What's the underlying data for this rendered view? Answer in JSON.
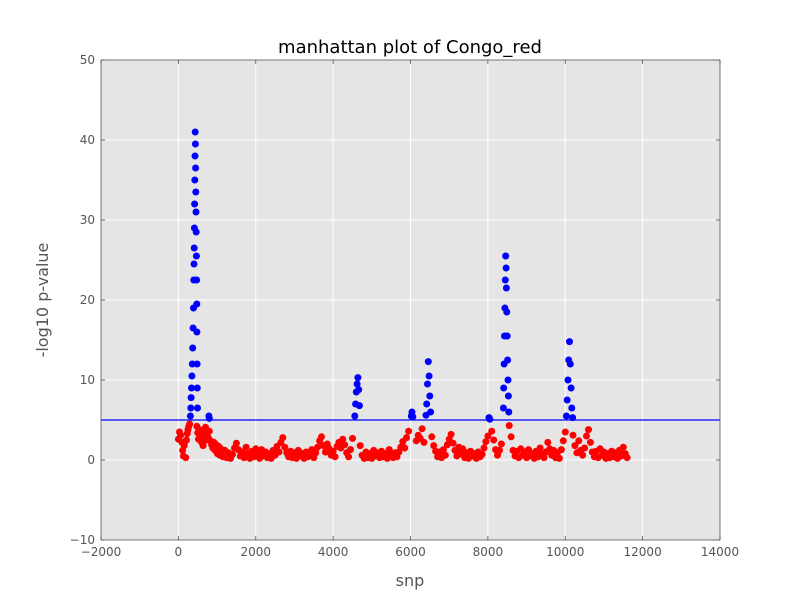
{
  "chart_data": {
    "type": "scatter",
    "title": "manhattan plot of Congo_red",
    "xlabel": "snp",
    "ylabel": "-log10 p-value",
    "xlim": [
      -2000,
      14000
    ],
    "ylim": [
      -10,
      50
    ],
    "xticks": [
      -2000,
      0,
      2000,
      4000,
      6000,
      8000,
      10000,
      12000,
      14000
    ],
    "yticks": [
      -10,
      0,
      10,
      20,
      30,
      40,
      50
    ],
    "grid": true,
    "threshold": {
      "y": 5,
      "color": "#0000ff"
    },
    "series": [
      {
        "color": "#ff0000",
        "points": [
          [
            0,
            2.6
          ],
          [
            30,
            3.5
          ],
          [
            60,
            3.1
          ],
          [
            90,
            2.2
          ],
          [
            110,
            1.2
          ],
          [
            130,
            0.5
          ],
          [
            150,
            1.8
          ],
          [
            170,
            2.3
          ],
          [
            190,
            0.3
          ],
          [
            210,
            2.5
          ],
          [
            230,
            3.3
          ],
          [
            250,
            3.8
          ],
          [
            270,
            4.2
          ],
          [
            290,
            4.5
          ],
          [
            480,
            4.2
          ],
          [
            500,
            3.4
          ],
          [
            520,
            2.6
          ],
          [
            540,
            3.8
          ],
          [
            560,
            2.9
          ],
          [
            580,
            3.6
          ],
          [
            600,
            2.2
          ],
          [
            620,
            3.1
          ],
          [
            640,
            1.8
          ],
          [
            660,
            2.7
          ],
          [
            680,
            3.4
          ],
          [
            700,
            4.1
          ],
          [
            720,
            2.5
          ],
          [
            740,
            3.3
          ],
          [
            770,
            2.8
          ],
          [
            800,
            3.6
          ],
          [
            830,
            2.4
          ],
          [
            860,
            1.9
          ],
          [
            890,
            1.5
          ],
          [
            920,
            2.2
          ],
          [
            950,
            1.2
          ],
          [
            980,
            1.9
          ],
          [
            1010,
            0.8
          ],
          [
            1040,
            1.7
          ],
          [
            1070,
            0.6
          ],
          [
            1100,
            1.4
          ],
          [
            1150,
            0.4
          ],
          [
            1200,
            1.2
          ],
          [
            1250,
            0.3
          ],
          [
            1300,
            0.9
          ],
          [
            1350,
            0.2
          ],
          [
            1400,
            0.7
          ],
          [
            1450,
            1.5
          ],
          [
            1500,
            2.1
          ],
          [
            1550,
            1.3
          ],
          [
            1600,
            0.5
          ],
          [
            1650,
            1.0
          ],
          [
            1700,
            0.3
          ],
          [
            1750,
            1.6
          ],
          [
            1800,
            0.8
          ],
          [
            1850,
            0.2
          ],
          [
            1900,
            1.1
          ],
          [
            1950,
            0.4
          ],
          [
            2000,
            1.4
          ],
          [
            2050,
            0.7
          ],
          [
            2100,
            0.2
          ],
          [
            2150,
            1.3
          ],
          [
            2200,
            0.5
          ],
          [
            2250,
            1.0
          ],
          [
            2300,
            0.3
          ],
          [
            2350,
            0.8
          ],
          [
            2400,
            0.2
          ],
          [
            2450,
            1.2
          ],
          [
            2500,
            0.6
          ],
          [
            2550,
            1.7
          ],
          [
            2600,
            1.0
          ],
          [
            2650,
            2.2
          ],
          [
            2700,
            2.8
          ],
          [
            2750,
            1.6
          ],
          [
            2800,
            0.9
          ],
          [
            2850,
            0.4
          ],
          [
            2900,
            1.1
          ],
          [
            2950,
            0.3
          ],
          [
            3000,
            0.9
          ],
          [
            3050,
            0.2
          ],
          [
            3100,
            1.2
          ],
          [
            3150,
            0.5
          ],
          [
            3200,
            0.8
          ],
          [
            3250,
            0.2
          ],
          [
            3300,
            1.0
          ],
          [
            3350,
            0.4
          ],
          [
            3400,
            0.7
          ],
          [
            3450,
            1.3
          ],
          [
            3500,
            0.3
          ],
          [
            3550,
            0.9
          ],
          [
            3600,
            1.6
          ],
          [
            3650,
            2.4
          ],
          [
            3700,
            2.9
          ],
          [
            3750,
            1.8
          ],
          [
            3800,
            1.0
          ],
          [
            3850,
            2.0
          ],
          [
            3900,
            1.4
          ],
          [
            3950,
            0.6
          ],
          [
            4000,
            1.1
          ],
          [
            4050,
            0.4
          ],
          [
            4100,
            1.7
          ],
          [
            4150,
            2.2
          ],
          [
            4200,
            1.5
          ],
          [
            4250,
            2.6
          ],
          [
            4300,
            1.9
          ],
          [
            4350,
            0.9
          ],
          [
            4400,
            0.4
          ],
          [
            4450,
            1.3
          ],
          [
            4500,
            2.7
          ],
          [
            4700,
            1.8
          ],
          [
            4750,
            0.6
          ],
          [
            4800,
            0.2
          ],
          [
            4850,
            1.0
          ],
          [
            4900,
            0.3
          ],
          [
            4950,
            0.8
          ],
          [
            5000,
            0.2
          ],
          [
            5050,
            1.2
          ],
          [
            5100,
            0.5
          ],
          [
            5150,
            0.9
          ],
          [
            5200,
            0.3
          ],
          [
            5250,
            1.1
          ],
          [
            5300,
            0.4
          ],
          [
            5350,
            0.8
          ],
          [
            5400,
            0.2
          ],
          [
            5450,
            1.3
          ],
          [
            5500,
            0.6
          ],
          [
            5550,
            0.3
          ],
          [
            5600,
            0.9
          ],
          [
            5650,
            0.4
          ],
          [
            5700,
            1.0
          ],
          [
            5750,
            1.6
          ],
          [
            5800,
            2.3
          ],
          [
            5850,
            1.5
          ],
          [
            5900,
            2.8
          ],
          [
            5950,
            3.6
          ],
          [
            6150,
            2.4
          ],
          [
            6200,
            3.1
          ],
          [
            6250,
            2.7
          ],
          [
            6300,
            3.9
          ],
          [
            6350,
            2.2
          ],
          [
            6550,
            2.9
          ],
          [
            6600,
            1.8
          ],
          [
            6650,
            1.1
          ],
          [
            6700,
            0.4
          ],
          [
            6750,
            1.0
          ],
          [
            6800,
            0.3
          ],
          [
            6850,
            1.3
          ],
          [
            6900,
            0.6
          ],
          [
            6950,
            1.9
          ],
          [
            7000,
            2.6
          ],
          [
            7050,
            3.2
          ],
          [
            7100,
            2.1
          ],
          [
            7150,
            1.2
          ],
          [
            7200,
            0.5
          ],
          [
            7250,
            1.6
          ],
          [
            7300,
            0.8
          ],
          [
            7350,
            1.4
          ],
          [
            7400,
            0.3
          ],
          [
            7450,
            0.9
          ],
          [
            7500,
            0.2
          ],
          [
            7550,
            1.1
          ],
          [
            7600,
            0.5
          ],
          [
            7650,
            0.8
          ],
          [
            7700,
            0.2
          ],
          [
            7750,
            1.0
          ],
          [
            7800,
            0.4
          ],
          [
            7850,
            0.7
          ],
          [
            7900,
            1.5
          ],
          [
            7950,
            2.3
          ],
          [
            8000,
            3.0
          ],
          [
            8100,
            3.6
          ],
          [
            8150,
            2.5
          ],
          [
            8200,
            1.3
          ],
          [
            8250,
            0.6
          ],
          [
            8300,
            1.2
          ],
          [
            8350,
            2.0
          ],
          [
            8550,
            4.3
          ],
          [
            8600,
            2.9
          ],
          [
            8650,
            1.2
          ],
          [
            8700,
            0.5
          ],
          [
            8750,
            1.1
          ],
          [
            8800,
            0.3
          ],
          [
            8850,
            1.4
          ],
          [
            8900,
            0.6
          ],
          [
            8950,
            1.0
          ],
          [
            9000,
            0.3
          ],
          [
            9050,
            1.3
          ],
          [
            9100,
            0.5
          ],
          [
            9150,
            0.8
          ],
          [
            9200,
            0.2
          ],
          [
            9250,
            1.1
          ],
          [
            9300,
            0.4
          ],
          [
            9350,
            1.5
          ],
          [
            9400,
            0.7
          ],
          [
            9450,
            0.3
          ],
          [
            9500,
            1.0
          ],
          [
            9550,
            2.2
          ],
          [
            9600,
            1.4
          ],
          [
            9650,
            0.6
          ],
          [
            9700,
            1.2
          ],
          [
            9750,
            0.3
          ],
          [
            9800,
            0.9
          ],
          [
            9850,
            0.2
          ],
          [
            9900,
            1.3
          ],
          [
            9950,
            2.4
          ],
          [
            10000,
            3.5
          ],
          [
            10200,
            3.1
          ],
          [
            10250,
            1.8
          ],
          [
            10300,
            0.9
          ],
          [
            10350,
            2.4
          ],
          [
            10400,
            1.2
          ],
          [
            10450,
            0.6
          ],
          [
            10500,
            1.5
          ],
          [
            10550,
            3.0
          ],
          [
            10600,
            3.8
          ],
          [
            10650,
            2.2
          ],
          [
            10700,
            1.0
          ],
          [
            10750,
            0.4
          ],
          [
            10800,
            1.1
          ],
          [
            10850,
            0.3
          ],
          [
            10900,
            1.4
          ],
          [
            10950,
            0.6
          ],
          [
            11000,
            1.0
          ],
          [
            11050,
            0.2
          ],
          [
            11100,
            0.8
          ],
          [
            11150,
            0.3
          ],
          [
            11200,
            1.1
          ],
          [
            11250,
            0.4
          ],
          [
            11300,
            0.9
          ],
          [
            11350,
            0.2
          ],
          [
            11400,
            1.2
          ],
          [
            11450,
            0.5
          ],
          [
            11500,
            1.6
          ],
          [
            11550,
            0.8
          ],
          [
            11600,
            0.3
          ]
        ]
      },
      {
        "color": "#0000ff",
        "points": [
          [
            310,
            5.5
          ],
          [
            320,
            6.5
          ],
          [
            330,
            7.8
          ],
          [
            340,
            9.0
          ],
          [
            350,
            10.5
          ],
          [
            360,
            12.0
          ],
          [
            370,
            14.0
          ],
          [
            380,
            16.5
          ],
          [
            390,
            19.0
          ],
          [
            400,
            22.5
          ],
          [
            405,
            24.5
          ],
          [
            410,
            26.5
          ],
          [
            415,
            29.0
          ],
          [
            420,
            32.0
          ],
          [
            425,
            35.0
          ],
          [
            430,
            38.0
          ],
          [
            435,
            41.0
          ],
          [
            440,
            39.5
          ],
          [
            445,
            36.5
          ],
          [
            450,
            33.5
          ],
          [
            455,
            31.0
          ],
          [
            460,
            28.5
          ],
          [
            465,
            25.5
          ],
          [
            470,
            22.5
          ],
          [
            475,
            19.5
          ],
          [
            480,
            16.0
          ],
          [
            485,
            12.0
          ],
          [
            490,
            9.0
          ],
          [
            495,
            6.5
          ],
          [
            790,
            5.5
          ],
          [
            800,
            5.2
          ],
          [
            4560,
            5.5
          ],
          [
            4580,
            7.0
          ],
          [
            4600,
            8.5
          ],
          [
            4620,
            9.5
          ],
          [
            4640,
            10.3
          ],
          [
            4660,
            8.8
          ],
          [
            4680,
            6.8
          ],
          [
            6020,
            5.5
          ],
          [
            6040,
            6.0
          ],
          [
            6060,
            5.4
          ],
          [
            6400,
            5.6
          ],
          [
            6420,
            7.0
          ],
          [
            6440,
            9.5
          ],
          [
            6460,
            12.3
          ],
          [
            6480,
            10.5
          ],
          [
            6500,
            8.0
          ],
          [
            6520,
            6.0
          ],
          [
            8030,
            5.3
          ],
          [
            8050,
            5.1
          ],
          [
            8400,
            6.5
          ],
          [
            8410,
            9.0
          ],
          [
            8420,
            12.0
          ],
          [
            8430,
            15.5
          ],
          [
            8440,
            19.0
          ],
          [
            8450,
            22.5
          ],
          [
            8460,
            25.5
          ],
          [
            8470,
            24.0
          ],
          [
            8480,
            21.5
          ],
          [
            8490,
            18.5
          ],
          [
            8500,
            15.5
          ],
          [
            8510,
            12.5
          ],
          [
            8520,
            10.0
          ],
          [
            8530,
            8.0
          ],
          [
            8540,
            6.0
          ],
          [
            10030,
            5.5
          ],
          [
            10050,
            7.5
          ],
          [
            10070,
            10.0
          ],
          [
            10090,
            12.5
          ],
          [
            10110,
            14.8
          ],
          [
            10130,
            12.0
          ],
          [
            10150,
            9.0
          ],
          [
            10170,
            6.5
          ],
          [
            10190,
            5.3
          ]
        ]
      }
    ]
  }
}
